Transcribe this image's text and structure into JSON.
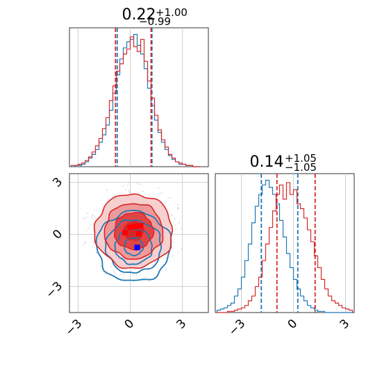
{
  "chart_data": {
    "type": "corner",
    "colors": {
      "series_a": "#1f77b4",
      "series_b": "#d62728",
      "marker_blue": "#0000ff",
      "marker_red": "#ff0000"
    },
    "ticks": [
      -3,
      0,
      3
    ],
    "tick_labels": [
      "−3",
      "0",
      "3"
    ],
    "grid": true,
    "panels": [
      {
        "id": "hist-param-1",
        "type": "histogram",
        "title": {
          "value": "0.22",
          "sup": "+1.00",
          "sub": "−0.99"
        },
        "xlim": [
          -3.5,
          4.5
        ],
        "quantiles": {
          "series_a": [
            -0.75,
            1.25
          ],
          "series_b": [
            -0.85,
            1.2
          ]
        },
        "bins_x": [
          -3.3,
          -3.1,
          -2.9,
          -2.7,
          -2.5,
          -2.3,
          -2.1,
          -1.9,
          -1.7,
          -1.5,
          -1.3,
          -1.1,
          -0.9,
          -0.7,
          -0.5,
          -0.3,
          -0.1,
          0.1,
          0.3,
          0.5,
          0.7,
          0.9,
          1.1,
          1.3,
          1.5,
          1.7,
          1.9,
          2.1,
          2.3,
          2.5,
          2.7,
          2.9,
          3.1,
          3.3,
          3.5,
          3.7,
          3.9
        ],
        "series_a_counts": [
          0,
          1,
          1,
          2,
          4,
          7,
          10,
          14,
          20,
          26,
          34,
          46,
          60,
          75,
          88,
          97,
          102,
          104,
          108,
          99,
          92,
          80,
          64,
          50,
          38,
          28,
          20,
          14,
          9,
          6,
          4,
          2,
          2,
          1,
          1,
          0,
          0
        ],
        "series_b_counts": [
          1,
          1,
          2,
          3,
          5,
          8,
          12,
          17,
          23,
          31,
          40,
          54,
          66,
          78,
          84,
          92,
          96,
          106,
          98,
          94,
          104,
          86,
          70,
          56,
          42,
          30,
          22,
          16,
          10,
          7,
          4,
          3,
          2,
          1,
          1,
          0,
          0
        ]
      },
      {
        "id": "hist-param-2",
        "type": "histogram",
        "title": {
          "value": "0.14",
          "sup": "+1.05",
          "sub": "−1.05"
        },
        "xlim": [
          -4.5,
          3.5
        ],
        "quantiles": {
          "series_a": [
            -1.85,
            0.25
          ],
          "series_b": [
            -0.95,
            1.25
          ]
        },
        "bins_x": [
          -4.3,
          -4.1,
          -3.9,
          -3.7,
          -3.5,
          -3.3,
          -3.1,
          -2.9,
          -2.7,
          -2.5,
          -2.3,
          -2.1,
          -1.9,
          -1.7,
          -1.5,
          -1.3,
          -1.1,
          -0.9,
          -0.7,
          -0.5,
          -0.3,
          -0.1,
          0.1,
          0.3,
          0.5,
          0.7,
          0.9,
          1.1,
          1.3,
          1.5,
          1.7,
          1.9,
          2.1,
          2.3,
          2.5,
          2.7,
          2.9,
          3.1,
          3.3
        ],
        "series_a_counts": [
          2,
          3,
          4,
          6,
          8,
          14,
          20,
          30,
          44,
          58,
          76,
          90,
          100,
          108,
          112,
          106,
          100,
          92,
          78,
          64,
          50,
          38,
          28,
          20,
          14,
          10,
          6,
          4,
          2,
          1,
          1,
          0,
          0,
          0,
          0,
          0,
          0,
          0,
          0
        ],
        "series_b_counts": [
          0,
          0,
          0,
          1,
          1,
          2,
          3,
          4,
          6,
          10,
          14,
          22,
          30,
          44,
          58,
          72,
          86,
          100,
          108,
          96,
          110,
          100,
          104,
          92,
          88,
          80,
          70,
          60,
          48,
          38,
          28,
          20,
          14,
          10,
          8,
          6,
          4,
          3,
          2
        ]
      },
      {
        "id": "contour-2d",
        "type": "contour",
        "xlim": [
          -3.5,
          4.5
        ],
        "ylim": [
          -4.5,
          3.5
        ],
        "series_a_center": [
          0.2,
          -0.7
        ],
        "series_b_center": [
          0.2,
          0.2
        ],
        "levels_sigma": [
          0.5,
          1.0,
          1.5,
          2.0
        ],
        "marker_blue": [
          0.4,
          -0.75
        ],
        "marker_red": [
          0.6,
          0.45
        ]
      }
    ]
  }
}
